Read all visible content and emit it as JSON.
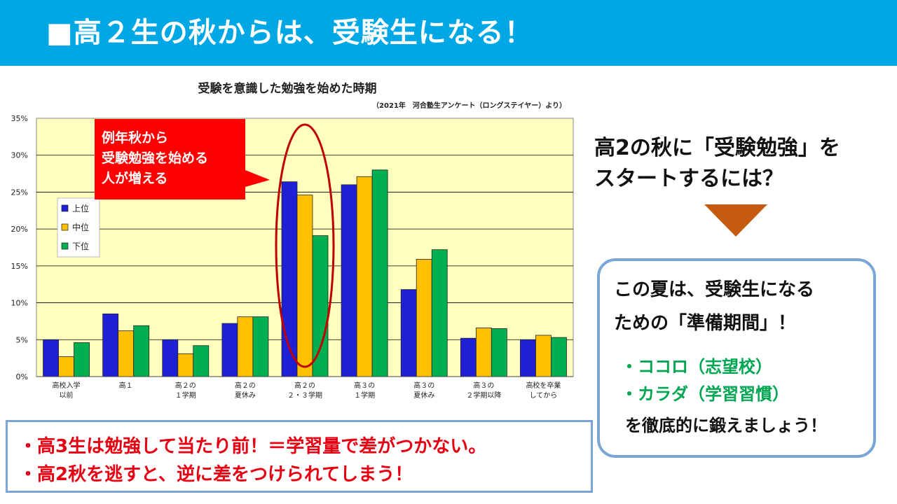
{
  "header": {
    "title": "■高２生の秋からは、受験生になる！"
  },
  "chart_data": {
    "type": "bar",
    "title": "受験を意識した勉強を始めた時期",
    "source": "（2021年　河合塾生アンケート（ロングステイヤー）より）",
    "categories": [
      [
        "高校入学",
        "以前"
      ],
      [
        "高１",
        ""
      ],
      [
        "高２の",
        "１学期"
      ],
      [
        "高２の",
        "夏休み"
      ],
      [
        "高２の",
        "２・３学期"
      ],
      [
        "高３の",
        "１学期"
      ],
      [
        "高３の",
        "夏休み"
      ],
      [
        "高３の",
        "２学期以降"
      ],
      [
        "高校を卒業",
        "してから"
      ]
    ],
    "series": [
      {
        "name": "上位",
        "color": "#1f1fd6",
        "values": [
          5.0,
          8.5,
          5.0,
          7.2,
          26.4,
          26.0,
          11.8,
          5.2,
          5.0
        ]
      },
      {
        "name": "中位",
        "color": "#ffc000",
        "values": [
          2.7,
          6.2,
          3.1,
          8.1,
          24.6,
          27.1,
          15.9,
          6.6,
          5.6
        ]
      },
      {
        "name": "下位",
        "color": "#00b050",
        "values": [
          4.6,
          6.9,
          4.2,
          8.1,
          19.1,
          28.0,
          17.2,
          6.5,
          5.3
        ]
      }
    ],
    "yticks": [
      "0%",
      "5%",
      "10%",
      "15%",
      "20%",
      "25%",
      "30%",
      "35%"
    ],
    "ylim": [
      0,
      35
    ],
    "grid": true,
    "legend": "left",
    "plot_background": "#ffffc0",
    "callout": [
      "例年秋から",
      "受験勉強を始める",
      "人が増える"
    ],
    "callout_color": "#ff0000",
    "highlight_category_index": 4,
    "highlight_color": "#c00000"
  },
  "right_panel": {
    "question": [
      "高2の秋に「受験勉強」を",
      "スタートするには？"
    ],
    "box_lines": [
      "この夏は、受験生になる",
      "ための「準備期間」！"
    ],
    "bullets": [
      "・ココロ（志望校）",
      "・カラダ（学習習慣）"
    ],
    "closing": "を徹底的に鍛えましょう！",
    "arrow_color": "#c55a11"
  },
  "bottom": {
    "lines": [
      "・高3生は勉強して当たり前！＝学習量で差がつかない。",
      "・高2秋を逃すと、逆に差をつけられてしまう！"
    ]
  }
}
